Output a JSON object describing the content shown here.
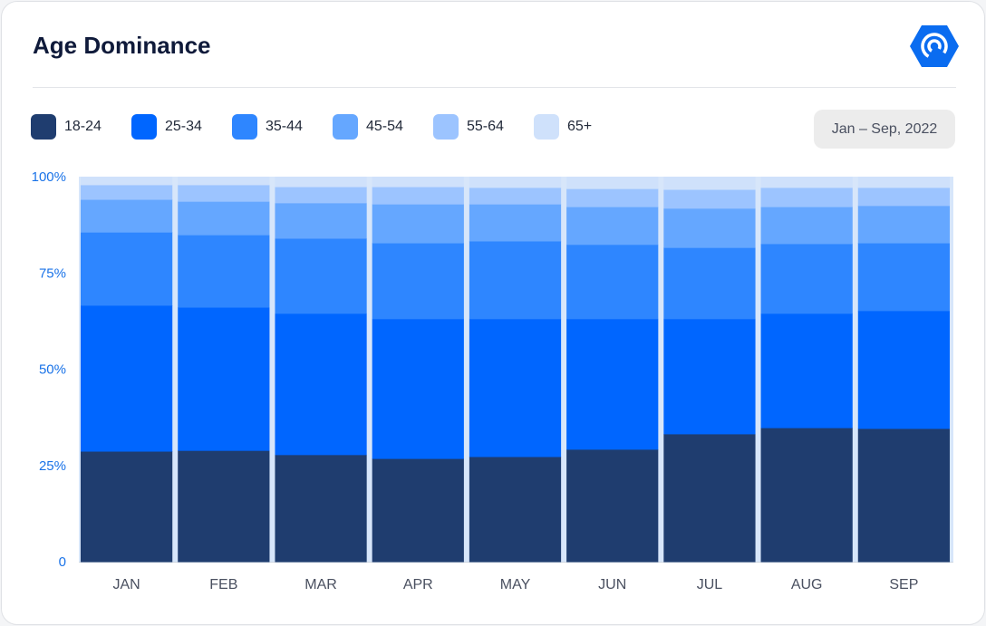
{
  "header": {
    "title": "Age Dominance",
    "logo_icon": "signal-hexagon-icon",
    "date_range": "Jan – Sep, 2022"
  },
  "colors": {
    "18-24": "#1f3d6f",
    "25-34": "#0066ff",
    "35-44": "#2e86ff",
    "45-54": "#65a7ff",
    "55-64": "#9cc4ff",
    "65+": "#cfe1fb",
    "gap": "#d7e6fa",
    "accent": "#0a6cf0"
  },
  "chart_data": {
    "type": "bar",
    "stacked": true,
    "title": "Age Dominance",
    "categories": [
      "JAN",
      "FEB",
      "MAR",
      "APR",
      "MAY",
      "JUN",
      "JUL",
      "AUG",
      "SEP"
    ],
    "series": [
      {
        "name": "18-24",
        "values": [
          28.7,
          28.9,
          27.8,
          26.8,
          27.3,
          29.2,
          33.2,
          34.8,
          34.6
        ]
      },
      {
        "name": "25-34",
        "values": [
          37.9,
          37.2,
          36.7,
          36.3,
          35.8,
          33.9,
          29.9,
          29.7,
          30.6
        ]
      },
      {
        "name": "35-44",
        "values": [
          19.0,
          18.8,
          19.5,
          19.7,
          20.2,
          19.3,
          18.5,
          18.1,
          17.6
        ]
      },
      {
        "name": "45-54",
        "values": [
          8.5,
          8.7,
          9.2,
          10.1,
          9.6,
          9.8,
          10.2,
          9.6,
          9.7
        ]
      },
      {
        "name": "55-64",
        "values": [
          3.8,
          4.3,
          4.2,
          4.5,
          4.3,
          4.7,
          4.9,
          5.0,
          4.7
        ]
      },
      {
        "name": "65+",
        "values": [
          2.1,
          2.1,
          2.6,
          2.6,
          2.8,
          3.1,
          3.3,
          2.8,
          2.8
        ]
      }
    ],
    "yticks": [
      {
        "v": 100,
        "label": "100%"
      },
      {
        "v": 75,
        "label": "75%"
      },
      {
        "v": 50,
        "label": "50%"
      },
      {
        "v": 25,
        "label": "25%"
      },
      {
        "v": 0,
        "label": "0"
      }
    ],
    "ylim": [
      0,
      100
    ],
    "xlabel": "",
    "ylabel": "",
    "legend": "top-left"
  }
}
